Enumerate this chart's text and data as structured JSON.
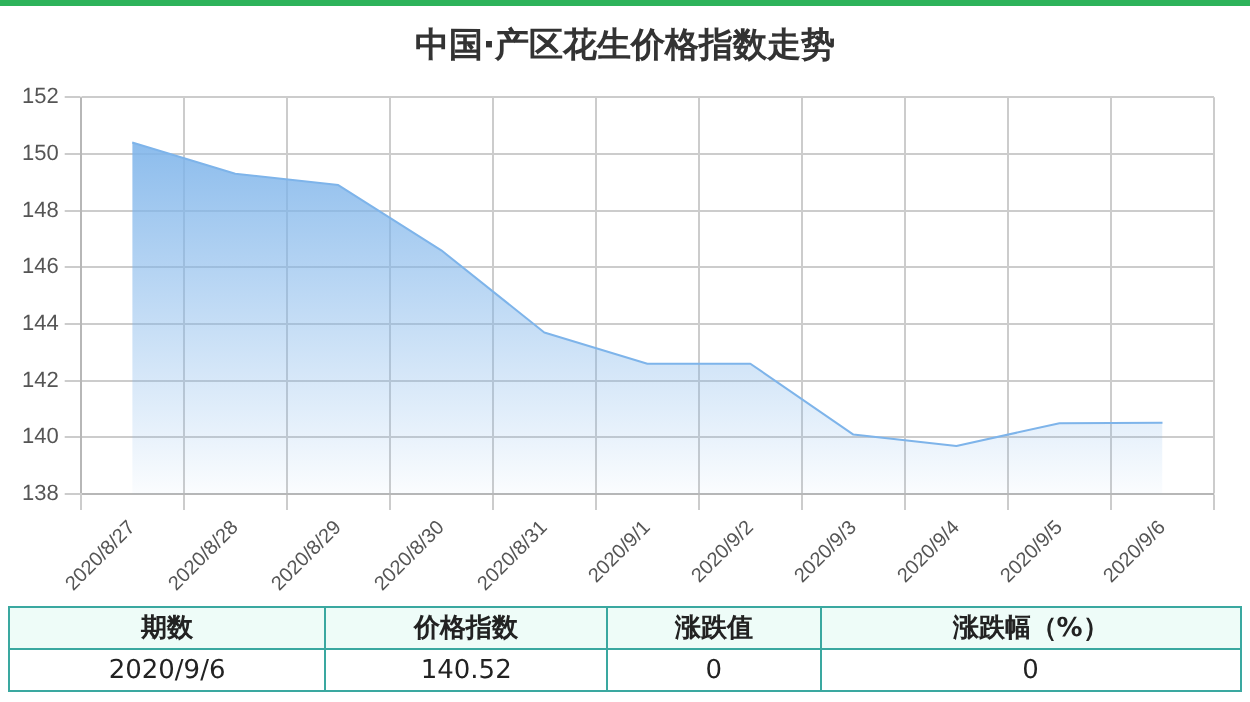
{
  "chart_data": {
    "type": "area",
    "title": "中国·产区花生价格指数走势",
    "categories": [
      "2020/8/27",
      "2020/8/28",
      "2020/8/29",
      "2020/8/30",
      "2020/8/31",
      "2020/9/1",
      "2020/9/2",
      "2020/9/3",
      "2020/9/4",
      "2020/9/5",
      "2020/9/6"
    ],
    "values": [
      150.4,
      149.3,
      148.9,
      146.6,
      143.7,
      142.6,
      142.6,
      140.1,
      139.7,
      140.5,
      140.52
    ],
    "color": "#7eb4ea",
    "ylim": [
      138,
      152
    ],
    "yticks": [
      138,
      140,
      142,
      144,
      146,
      148,
      150,
      152
    ],
    "grid": true,
    "annotations": [
      "期数",
      "价格指数",
      "涨跌值",
      "涨跌幅（%）",
      "2020/9/6",
      "140.52",
      "0",
      "0"
    ]
  }
}
